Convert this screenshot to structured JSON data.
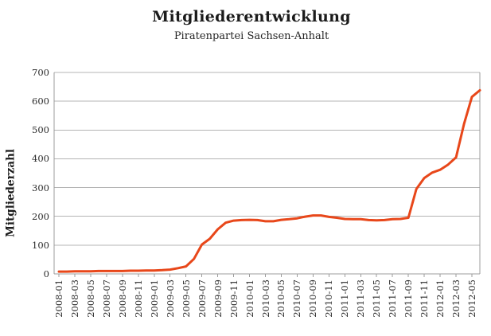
{
  "header": {
    "title": "Mitgliederentwicklung",
    "subtitle": "Piratenpartei Sachsen-Anhalt"
  },
  "chart_data": {
    "type": "line",
    "title": "Mitgliederentwicklung",
    "subtitle": "Piratenpartei Sachsen-Anhalt",
    "xlabel": "",
    "ylabel": "Mitgliederzahl",
    "ylim": [
      0,
      700
    ],
    "ytick_step": 100,
    "grid": "horizontal-only",
    "legend": "none",
    "line_color": "#e8471a",
    "grid_color": "#b4b4b4",
    "axis_color": "#9c9c9c",
    "x_tick_every": 2,
    "x": [
      "2008-01",
      "2008-02",
      "2008-03",
      "2008-04",
      "2008-05",
      "2008-06",
      "2008-07",
      "2008-08",
      "2008-09",
      "2008-10",
      "2008-11",
      "2008-12",
      "2009-01",
      "2009-02",
      "2009-03",
      "2009-04",
      "2009-05",
      "2009-06",
      "2009-07",
      "2009-08",
      "2009-09",
      "2009-10",
      "2009-11",
      "2009-12",
      "2010-01",
      "2010-02",
      "2010-03",
      "2010-04",
      "2010-05",
      "2010-06",
      "2010-07",
      "2010-08",
      "2010-09",
      "2010-10",
      "2010-11",
      "2010-12",
      "2011-01",
      "2011-02",
      "2011-03",
      "2011-04",
      "2011-05",
      "2011-06",
      "2011-07",
      "2011-08",
      "2011-09",
      "2011-10",
      "2011-11",
      "2011-12",
      "2012-01",
      "2012-02",
      "2012-03",
      "2012-04",
      "2012-05",
      "2012-06"
    ],
    "values": [
      8,
      8,
      9,
      9,
      9,
      10,
      10,
      10,
      10,
      11,
      11,
      12,
      12,
      13,
      15,
      20,
      26,
      52,
      102,
      122,
      155,
      178,
      185,
      187,
      188,
      187,
      183,
      183,
      188,
      190,
      193,
      199,
      203,
      203,
      198,
      195,
      191,
      190,
      190,
      187,
      186,
      187,
      190,
      191,
      195,
      295,
      333,
      352,
      362,
      380,
      405,
      520,
      615,
      638
    ]
  }
}
